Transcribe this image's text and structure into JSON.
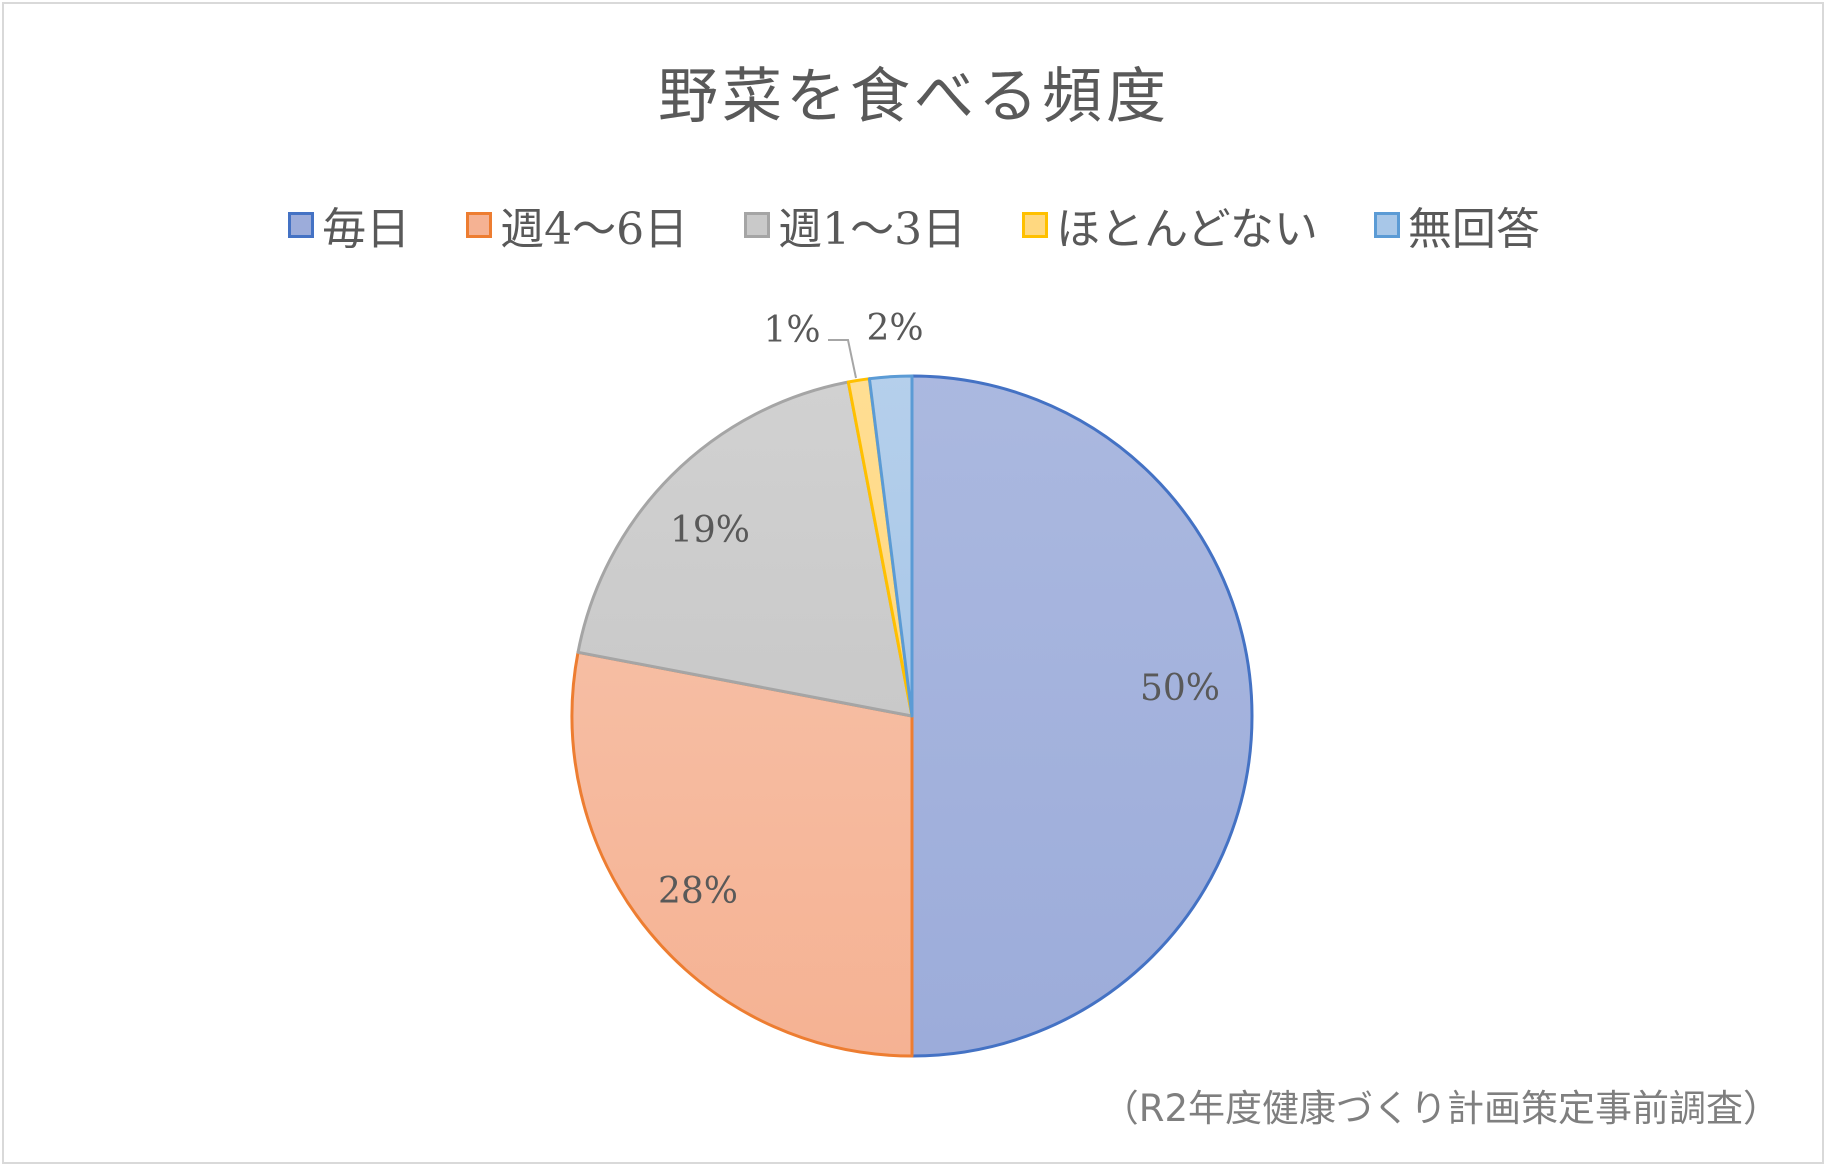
{
  "chart_data": {
    "type": "pie",
    "title": "野菜を食べる頻度",
    "categories": [
      "毎日",
      "週4〜6日",
      "週1〜3日",
      "ほとんどない",
      "無回答"
    ],
    "values": [
      50,
      28,
      19,
      1,
      2
    ],
    "data_labels": [
      "50%",
      "28%",
      "19%",
      "1%",
      "2%"
    ],
    "legend_position": "top",
    "colors": {
      "fill": [
        "#9cacda",
        "#f5b293",
        "#c9c9c9",
        "#ffd880",
        "#a8c7e8"
      ],
      "stroke": [
        "#4472c4",
        "#ed7d31",
        "#a5a5a5",
        "#ffc000",
        "#5b9bd5"
      ]
    }
  },
  "source_note": "（R2年度健康づくり計画策定事前調査）"
}
